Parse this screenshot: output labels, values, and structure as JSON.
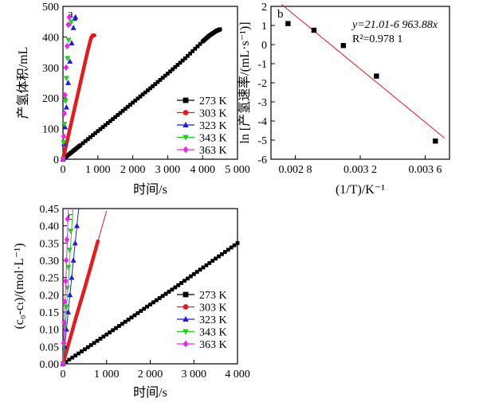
{
  "colors": {
    "273 K": "#000000",
    "303 K": "#e41a1c",
    "323 K": "#1f1fd6",
    "343 K": "#22cc22",
    "363 K": "#ee22ee",
    "fit": "#e41a1c"
  },
  "chart_data": [
    {
      "type": "scatter",
      "panel_label": "a",
      "xlabel": "时间/s",
      "ylabel": "产氢体积/mL",
      "xlim": [
        0,
        5000
      ],
      "ylim": [
        0,
        500
      ],
      "xticks": [
        0,
        1000,
        2000,
        3000,
        4000,
        5000
      ],
      "xtick_labels": [
        "0",
        "1 000",
        "2 000",
        "3 000",
        "4 000",
        "5 000"
      ],
      "yticks": [
        0,
        100,
        200,
        300,
        400,
        500
      ],
      "ytick_labels": [
        "0",
        "100",
        "200",
        "300",
        "400",
        "500"
      ],
      "legend_position": "bottom-right",
      "series": [
        {
          "name": "273 K",
          "marker": "square",
          "dense": true,
          "x": [
            0,
            250,
            500,
            1000,
            1500,
            2000,
            2500,
            3000,
            3500,
            4000,
            4200,
            4400,
            4500
          ],
          "y": [
            0,
            23,
            46,
            92,
            138,
            185,
            232,
            280,
            330,
            385,
            405,
            420,
            425
          ]
        },
        {
          "name": "303 K",
          "marker": "circle",
          "dense": true,
          "x": [
            0,
            100,
            200,
            300,
            400,
            500,
            600,
            700,
            800,
            850,
            900
          ],
          "y": [
            0,
            50,
            100,
            150,
            200,
            250,
            300,
            350,
            395,
            405,
            405
          ]
        },
        {
          "name": "323 K",
          "marker": "triangle-up",
          "dense": false,
          "x": [
            0,
            30,
            60,
            100,
            150,
            200,
            250,
            300,
            330,
            360
          ],
          "y": [
            0,
            50,
            105,
            170,
            250,
            320,
            380,
            430,
            460,
            465
          ]
        },
        {
          "name": "343 K",
          "marker": "triangle-down",
          "dense": false,
          "x": [
            0,
            20,
            40,
            70,
            100,
            130,
            160,
            200,
            240
          ],
          "y": [
            0,
            55,
            115,
            190,
            265,
            330,
            390,
            440,
            450
          ]
        },
        {
          "name": "363 K",
          "marker": "diamond",
          "dense": false,
          "x": [
            0,
            20,
            40,
            60,
            90,
            120,
            150,
            180
          ],
          "y": [
            0,
            75,
            150,
            210,
            300,
            370,
            440,
            465
          ]
        }
      ]
    },
    {
      "type": "scatter",
      "panel_label": "b",
      "xlabel": "(1/T)/K⁻¹",
      "ylabel": "ln [产氢速率/(mL·s⁻¹)]",
      "xlim": [
        0.00265,
        0.00375
      ],
      "ylim": [
        -6,
        2
      ],
      "xticks": [
        0.0028,
        0.0032,
        0.0036
      ],
      "xtick_labels": [
        "0.002 8",
        "0.003 2",
        "0.003 6"
      ],
      "yticks": [
        -6,
        -5,
        -4,
        -3,
        -2,
        -1,
        0,
        1,
        2
      ],
      "ytick_labels": [
        "-6",
        "-5",
        "-4",
        "-3",
        "-2",
        "-1",
        "0",
        "1",
        "2"
      ],
      "equation": "y=21.01-6 963.88x",
      "r2_label": "R²=0.978 1",
      "fit": {
        "intercept": 21.01,
        "slope": -6963.88
      },
      "points": {
        "x": [
          0.002755,
          0.002915,
          0.003096,
          0.0033,
          0.003663
        ],
        "y": [
          1.1,
          0.75,
          -0.05,
          -1.65,
          -5.05
        ]
      }
    },
    {
      "type": "scatter",
      "panel_label": "c",
      "xlabel": "时间/s",
      "ylabel": "(c₀-cₜ)/(mol·L⁻¹)",
      "xlim": [
        0,
        4000
      ],
      "ylim": [
        0,
        0.45
      ],
      "xticks": [
        0,
        1000,
        2000,
        3000,
        4000
      ],
      "xtick_labels": [
        "0",
        "1 000",
        "2 000",
        "3 000",
        "4 000"
      ],
      "yticks": [
        0,
        0.05,
        0.1,
        0.15,
        0.2,
        0.25,
        0.3,
        0.35,
        0.4,
        0.45
      ],
      "ytick_labels": [
        "0.00",
        "0.05",
        "0.10",
        "0.15",
        "0.20",
        "0.25",
        "0.30",
        "0.35",
        "0.40",
        "0.45"
      ],
      "legend_position": "bottom-right",
      "series": [
        {
          "name": "273 K",
          "marker": "square",
          "dense": true,
          "x": [
            0,
            500,
            1000,
            1500,
            2000,
            2500,
            3000,
            3500,
            4000
          ],
          "y": [
            0,
            0.042,
            0.085,
            0.128,
            0.172,
            0.215,
            0.26,
            0.305,
            0.35
          ],
          "fit_x": [
            0,
            4000
          ]
        },
        {
          "name": "303 K",
          "marker": "circle",
          "dense": true,
          "x": [
            0,
            100,
            200,
            300,
            400,
            500,
            600,
            700,
            800
          ],
          "y": [
            0,
            0.045,
            0.09,
            0.135,
            0.178,
            0.22,
            0.265,
            0.31,
            0.355
          ],
          "fit_x": [
            0,
            1000
          ]
        },
        {
          "name": "323 K",
          "marker": "triangle-up",
          "dense": false,
          "x": [
            0,
            40,
            80,
            120,
            160,
            200,
            240,
            280,
            320
          ],
          "y": [
            0,
            0.05,
            0.1,
            0.15,
            0.2,
            0.25,
            0.3,
            0.35,
            0.4
          ],
          "fit_x": [
            0,
            360
          ]
        },
        {
          "name": "343 K",
          "marker": "triangle-down",
          "dense": false,
          "x": [
            0,
            25,
            50,
            75,
            100,
            125,
            150,
            175
          ],
          "y": [
            0,
            0.055,
            0.11,
            0.165,
            0.22,
            0.28,
            0.33,
            0.385
          ],
          "fit_x": [
            0,
            230
          ]
        },
        {
          "name": "363 K",
          "marker": "diamond",
          "dense": false,
          "x": [
            0,
            15,
            30,
            45,
            60,
            75,
            90,
            105
          ],
          "y": [
            0,
            0.06,
            0.12,
            0.18,
            0.24,
            0.3,
            0.36,
            0.42
          ],
          "fit_x": [
            0,
            125
          ]
        }
      ]
    }
  ]
}
